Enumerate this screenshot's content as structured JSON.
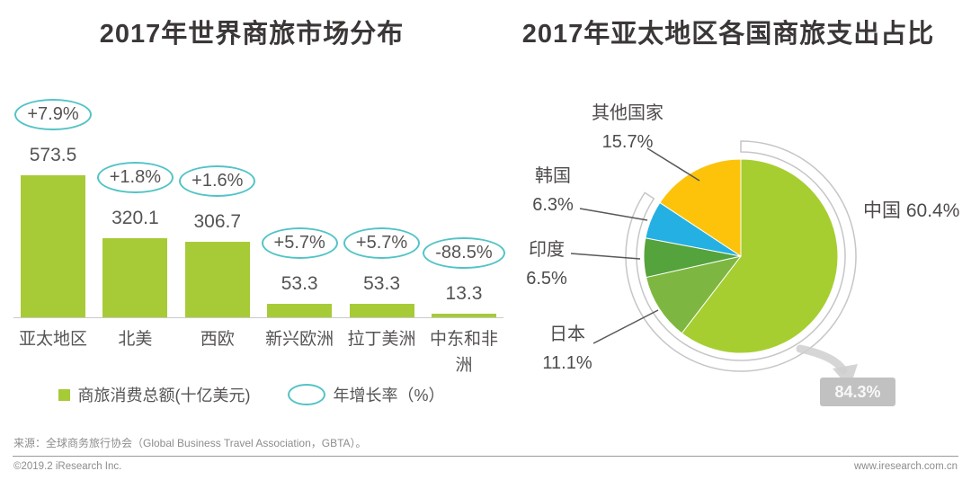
{
  "titles": {
    "left": "2017年世界商旅市场分布",
    "right": "2017年亚太地区各国商旅支出占比"
  },
  "chart_data": [
    {
      "type": "bar",
      "title": "2017年世界商旅市场分布",
      "categories": [
        "亚太地区",
        "北美",
        "西欧",
        "新兴欧洲",
        "拉丁美洲",
        "中东和非洲"
      ],
      "values": [
        573.5,
        320.1,
        306.7,
        53.3,
        53.3,
        13.3
      ],
      "value_labels": [
        "573.5",
        "320.1",
        "306.7",
        "53.3",
        "53.3",
        "13.3"
      ],
      "growth_labels": [
        "+7.9%",
        "+1.8%",
        "+1.6%",
        "+5.7%",
        "+5.7%",
        "-88.5%"
      ],
      "ylabel": "商旅消费总额(十亿美元)",
      "ylim": [
        0,
        600
      ],
      "grid": false,
      "bar_color": "#a7cb37",
      "legend": [
        {
          "icon": "square",
          "label": "商旅消费总额(十亿美元)",
          "color": "#a7cb37"
        },
        {
          "icon": "ellipse",
          "label": "年增长率（%）",
          "color": "#53c3c6"
        }
      ]
    },
    {
      "type": "pie",
      "title": "2017年亚太地区各国商旅支出占比",
      "direction": "clockwise",
      "start_angle": "12-oclock",
      "slices": [
        {
          "label": "中国",
          "value": 60.4,
          "percent_label": "60.4%",
          "color": "#a6ce31"
        },
        {
          "label": "日本",
          "value": 11.1,
          "percent_label": "11.1%",
          "color": "#7db741"
        },
        {
          "label": "印度",
          "value": 6.5,
          "percent_label": "6.5%",
          "color": "#55a33c"
        },
        {
          "label": "韩国",
          "value": 6.3,
          "percent_label": "6.3%",
          "color": "#25b0e3"
        },
        {
          "label": "其他国家",
          "value": 15.7,
          "percent_label": "15.7%",
          "color": "#fdc30b"
        }
      ],
      "highlight": {
        "percent": 84.3,
        "value_label": "84.3%"
      }
    }
  ],
  "footer": {
    "source": "来源：全球商务旅行协会（Global Business Travel Association，GBTA）。",
    "copyright": "©2019.2 iResearch Inc.",
    "website": "www.iresearch.com.cn"
  },
  "colors": {
    "accent_teal": "#53c3c6",
    "bar_green": "#a7cb37",
    "ring_gray": "#c6c6c6",
    "arrow_gray": "#cfcfcf",
    "box_gray": "#c1c1c1"
  }
}
